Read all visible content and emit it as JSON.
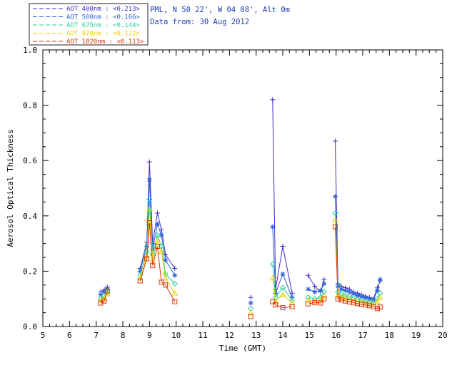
{
  "header": {
    "location_line": "PML, N 50 22', W 04 08', Alt 0m",
    "date_line": "Data from: 30 Aug 2012",
    "color": "#1f3db0"
  },
  "legend": {
    "border_color": "#222222"
  },
  "axes_color": "#000000",
  "chart_data": {
    "type": "scatter",
    "title": "",
    "xlabel": "Time (GMT)",
    "ylabel": "Aerosol Optical Thickness",
    "xlim": [
      5,
      20
    ],
    "ylim": [
      0.0,
      1.0
    ],
    "grid": false,
    "legend_position": "top-left-outside",
    "xticks": [
      5,
      6,
      7,
      8,
      9,
      10,
      11,
      12,
      13,
      14,
      15,
      16,
      17,
      18,
      19,
      20
    ],
    "xtick_labels": [
      "5",
      "6",
      "7",
      "8",
      "9",
      "10",
      "11",
      "12",
      "13",
      "14",
      "15",
      "16",
      "17",
      "18",
      "19",
      "20"
    ],
    "x_minor_step": 0.25,
    "yticks": [
      0.0,
      0.2,
      0.4,
      0.6,
      0.8,
      1.0
    ],
    "ytick_labels": [
      "0.0",
      "0.2",
      "0.4",
      "0.6",
      "0.8",
      "1.0"
    ],
    "y_minor_step": 0.05,
    "series": [
      {
        "id": "aot-400nm",
        "label": "AOT 400nm",
        "legend_label": "AOT  400nm : <0.213>",
        "color": "#3a2ec8",
        "marker": "plus",
        "segments": [
          [
            [
              7.17,
              0.125
            ],
            [
              7.3,
              0.132
            ],
            [
              7.42,
              0.142
            ]
          ],
          [
            [
              8.65,
              0.21
            ],
            [
              8.9,
              0.305
            ],
            [
              9.0,
              0.595
            ],
            [
              9.12,
              0.3
            ],
            [
              9.3,
              0.41
            ],
            [
              9.45,
              0.35
            ],
            [
              9.6,
              0.26
            ],
            [
              9.95,
              0.21
            ]
          ],
          [
            [
              12.8,
              0.105
            ]
          ],
          [
            [
              13.62,
              0.82
            ],
            [
              13.73,
              0.135
            ],
            [
              14.0,
              0.29
            ],
            [
              14.35,
              0.12
            ]
          ],
          [
            [
              14.95,
              0.185
            ],
            [
              15.2,
              0.145
            ],
            [
              15.42,
              0.125
            ],
            [
              15.55,
              0.17
            ]
          ],
          [
            [
              15.97,
              0.67
            ],
            [
              16.07,
              0.155
            ],
            [
              16.2,
              0.145
            ],
            [
              16.35,
              0.14
            ],
            [
              16.5,
              0.135
            ],
            [
              16.65,
              0.125
            ],
            [
              16.8,
              0.12
            ],
            [
              16.95,
              0.115
            ],
            [
              17.1,
              0.11
            ],
            [
              17.25,
              0.105
            ],
            [
              17.4,
              0.1
            ],
            [
              17.55,
              0.14
            ],
            [
              17.65,
              0.165
            ]
          ]
        ]
      },
      {
        "id": "aot-500nm",
        "label": "AOT 500nm",
        "legend_label": "AOT  500nm : <0.166>",
        "color": "#2e62d6",
        "marker": "asterisk",
        "segments": [
          [
            [
              7.17,
              0.115
            ],
            [
              7.3,
              0.125
            ],
            [
              7.42,
              0.135
            ]
          ],
          [
            [
              8.65,
              0.2
            ],
            [
              8.9,
              0.29
            ],
            [
              9.0,
              0.53
            ],
            [
              9.12,
              0.28
            ],
            [
              9.3,
              0.37
            ],
            [
              9.45,
              0.33
            ],
            [
              9.6,
              0.24
            ],
            [
              9.95,
              0.185
            ]
          ],
          [
            [
              12.8,
              0.085
            ]
          ],
          [
            [
              13.62,
              0.36
            ],
            [
              13.73,
              0.12
            ],
            [
              14.0,
              0.19
            ],
            [
              14.35,
              0.105
            ]
          ],
          [
            [
              14.95,
              0.135
            ],
            [
              15.2,
              0.125
            ],
            [
              15.42,
              0.13
            ],
            [
              15.55,
              0.155
            ]
          ],
          [
            [
              15.97,
              0.47
            ],
            [
              16.07,
              0.145
            ],
            [
              16.2,
              0.135
            ],
            [
              16.35,
              0.13
            ],
            [
              16.5,
              0.125
            ],
            [
              16.65,
              0.118
            ],
            [
              16.8,
              0.112
            ],
            [
              16.95,
              0.108
            ],
            [
              17.1,
              0.104
            ],
            [
              17.25,
              0.1
            ],
            [
              17.4,
              0.098
            ],
            [
              17.55,
              0.13
            ],
            [
              17.65,
              0.17
            ]
          ]
        ]
      },
      {
        "id": "aot-675nm",
        "label": "AOT 675nm",
        "legend_label": "AOT  675nm : <0.144>",
        "color": "#2fcf9f",
        "marker": "diamond",
        "segments": [
          [
            [
              7.17,
              0.1
            ],
            [
              7.3,
              0.11
            ],
            [
              7.42,
              0.125
            ]
          ],
          [
            [
              8.65,
              0.185
            ],
            [
              8.9,
              0.27
            ],
            [
              9.0,
              0.46
            ],
            [
              9.12,
              0.26
            ],
            [
              9.3,
              0.33
            ],
            [
              9.45,
              0.29
            ],
            [
              9.6,
              0.19
            ],
            [
              9.95,
              0.155
            ]
          ],
          [
            [
              12.8,
              0.065
            ]
          ],
          [
            [
              13.62,
              0.225
            ],
            [
              13.73,
              0.105
            ],
            [
              14.0,
              0.14
            ],
            [
              14.35,
              0.095
            ]
          ],
          [
            [
              14.95,
              0.105
            ],
            [
              15.2,
              0.1
            ],
            [
              15.42,
              0.105
            ],
            [
              15.55,
              0.125
            ]
          ],
          [
            [
              15.97,
              0.41
            ],
            [
              16.07,
              0.125
            ],
            [
              16.2,
              0.118
            ],
            [
              16.35,
              0.112
            ],
            [
              16.5,
              0.108
            ],
            [
              16.65,
              0.103
            ],
            [
              16.8,
              0.098
            ],
            [
              16.95,
              0.094
            ],
            [
              17.1,
              0.09
            ],
            [
              17.25,
              0.088
            ],
            [
              17.4,
              0.085
            ],
            [
              17.55,
              0.1
            ],
            [
              17.65,
              0.12
            ]
          ]
        ]
      },
      {
        "id": "aot-870nm",
        "label": "AOT 870nm",
        "legend_label": "AOT  870nm : <0.122>",
        "color": "#edd000",
        "marker": "triangle",
        "segments": [
          [
            [
              7.17,
              0.095
            ],
            [
              7.3,
              0.1
            ],
            [
              7.42,
              0.118
            ]
          ],
          [
            [
              8.65,
              0.175
            ],
            [
              8.9,
              0.255
            ],
            [
              9.0,
              0.425
            ],
            [
              9.12,
              0.24
            ],
            [
              9.3,
              0.31
            ],
            [
              9.45,
              0.27
            ],
            [
              9.6,
              0.175
            ],
            [
              9.95,
              0.12
            ]
          ],
          [
            [
              12.8,
              0.048
            ]
          ],
          [
            [
              13.62,
              0.175
            ],
            [
              13.73,
              0.09
            ],
            [
              14.0,
              0.115
            ],
            [
              14.35,
              0.085
            ]
          ],
          [
            [
              14.95,
              0.095
            ],
            [
              15.2,
              0.092
            ],
            [
              15.42,
              0.095
            ],
            [
              15.55,
              0.11
            ]
          ],
          [
            [
              15.97,
              0.385
            ],
            [
              16.07,
              0.112
            ],
            [
              16.2,
              0.106
            ],
            [
              16.35,
              0.102
            ],
            [
              16.5,
              0.098
            ],
            [
              16.65,
              0.094
            ],
            [
              16.8,
              0.09
            ],
            [
              16.95,
              0.087
            ],
            [
              17.1,
              0.084
            ],
            [
              17.25,
              0.081
            ],
            [
              17.4,
              0.078
            ],
            [
              17.55,
              0.09
            ],
            [
              17.65,
              0.105
            ]
          ]
        ]
      },
      {
        "id": "aot-1020nm",
        "label": "AOT 1020nm",
        "legend_label": "AOT 1020nm : <0.113>",
        "color": "#dd3300",
        "marker": "square",
        "segments": [
          [
            [
              7.17,
              0.085
            ],
            [
              7.3,
              0.092
            ],
            [
              7.42,
              0.128
            ]
          ],
          [
            [
              8.65,
              0.165
            ],
            [
              8.9,
              0.245
            ],
            [
              9.0,
              0.375
            ],
            [
              9.12,
              0.22
            ],
            [
              9.3,
              0.29
            ],
            [
              9.45,
              0.16
            ],
            [
              9.6,
              0.15
            ],
            [
              9.95,
              0.09
            ]
          ],
          [
            [
              12.8,
              0.036
            ]
          ],
          [
            [
              13.62,
              0.09
            ],
            [
              13.73,
              0.078
            ],
            [
              14.0,
              0.068
            ],
            [
              14.35,
              0.072
            ]
          ],
          [
            [
              14.95,
              0.082
            ],
            [
              15.2,
              0.086
            ],
            [
              15.42,
              0.085
            ],
            [
              15.55,
              0.1
            ]
          ],
          [
            [
              15.97,
              0.36
            ],
            [
              16.07,
              0.1
            ],
            [
              16.2,
              0.096
            ],
            [
              16.35,
              0.092
            ],
            [
              16.5,
              0.089
            ],
            [
              16.65,
              0.086
            ],
            [
              16.8,
              0.083
            ],
            [
              16.95,
              0.08
            ],
            [
              17.1,
              0.078
            ],
            [
              17.25,
              0.075
            ],
            [
              17.4,
              0.072
            ],
            [
              17.55,
              0.065
            ],
            [
              17.65,
              0.07
            ]
          ]
        ]
      }
    ]
  }
}
